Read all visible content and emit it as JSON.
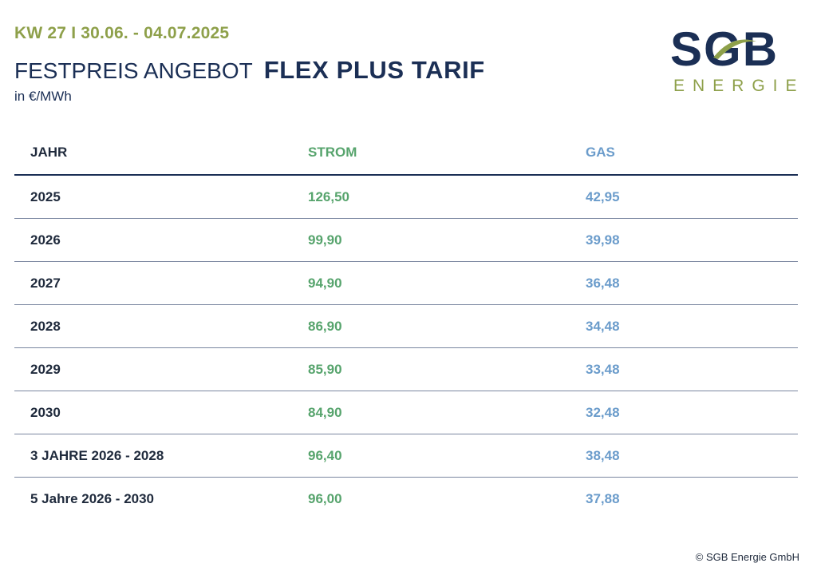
{
  "header": {
    "week": "KW 27 I 30.06. - 04.07.2025",
    "title_light": "FESTPREIS ANGEBOT",
    "title_bold": "FLEX PLUS TARIF",
    "unit": "in €/MWh"
  },
  "logo": {
    "word": "SGB",
    "sub": "ENERGIE"
  },
  "table": {
    "columns": [
      "JAHR",
      "STROM",
      "GAS"
    ],
    "rows": [
      [
        "2025",
        "126,50",
        "42,95"
      ],
      [
        "2026",
        "99,90",
        "39,98"
      ],
      [
        "2027",
        "94,90",
        "36,48"
      ],
      [
        "2028",
        "86,90",
        "34,48"
      ],
      [
        "2029",
        "85,90",
        "33,48"
      ],
      [
        "2030",
        "84,90",
        "32,48"
      ],
      [
        "3 JAHRE 2026 - 2028",
        "96,40",
        "38,48"
      ],
      [
        "5 Jahre 2026 - 2030",
        "96,00",
        "37,88"
      ]
    ]
  },
  "colors": {
    "navy": "#1b2f55",
    "olive": "#8ea04a",
    "strom": "#57a46d",
    "gas": "#6b9ccb"
  },
  "footer": {
    "copyright": "© SGB Energie GmbH"
  }
}
